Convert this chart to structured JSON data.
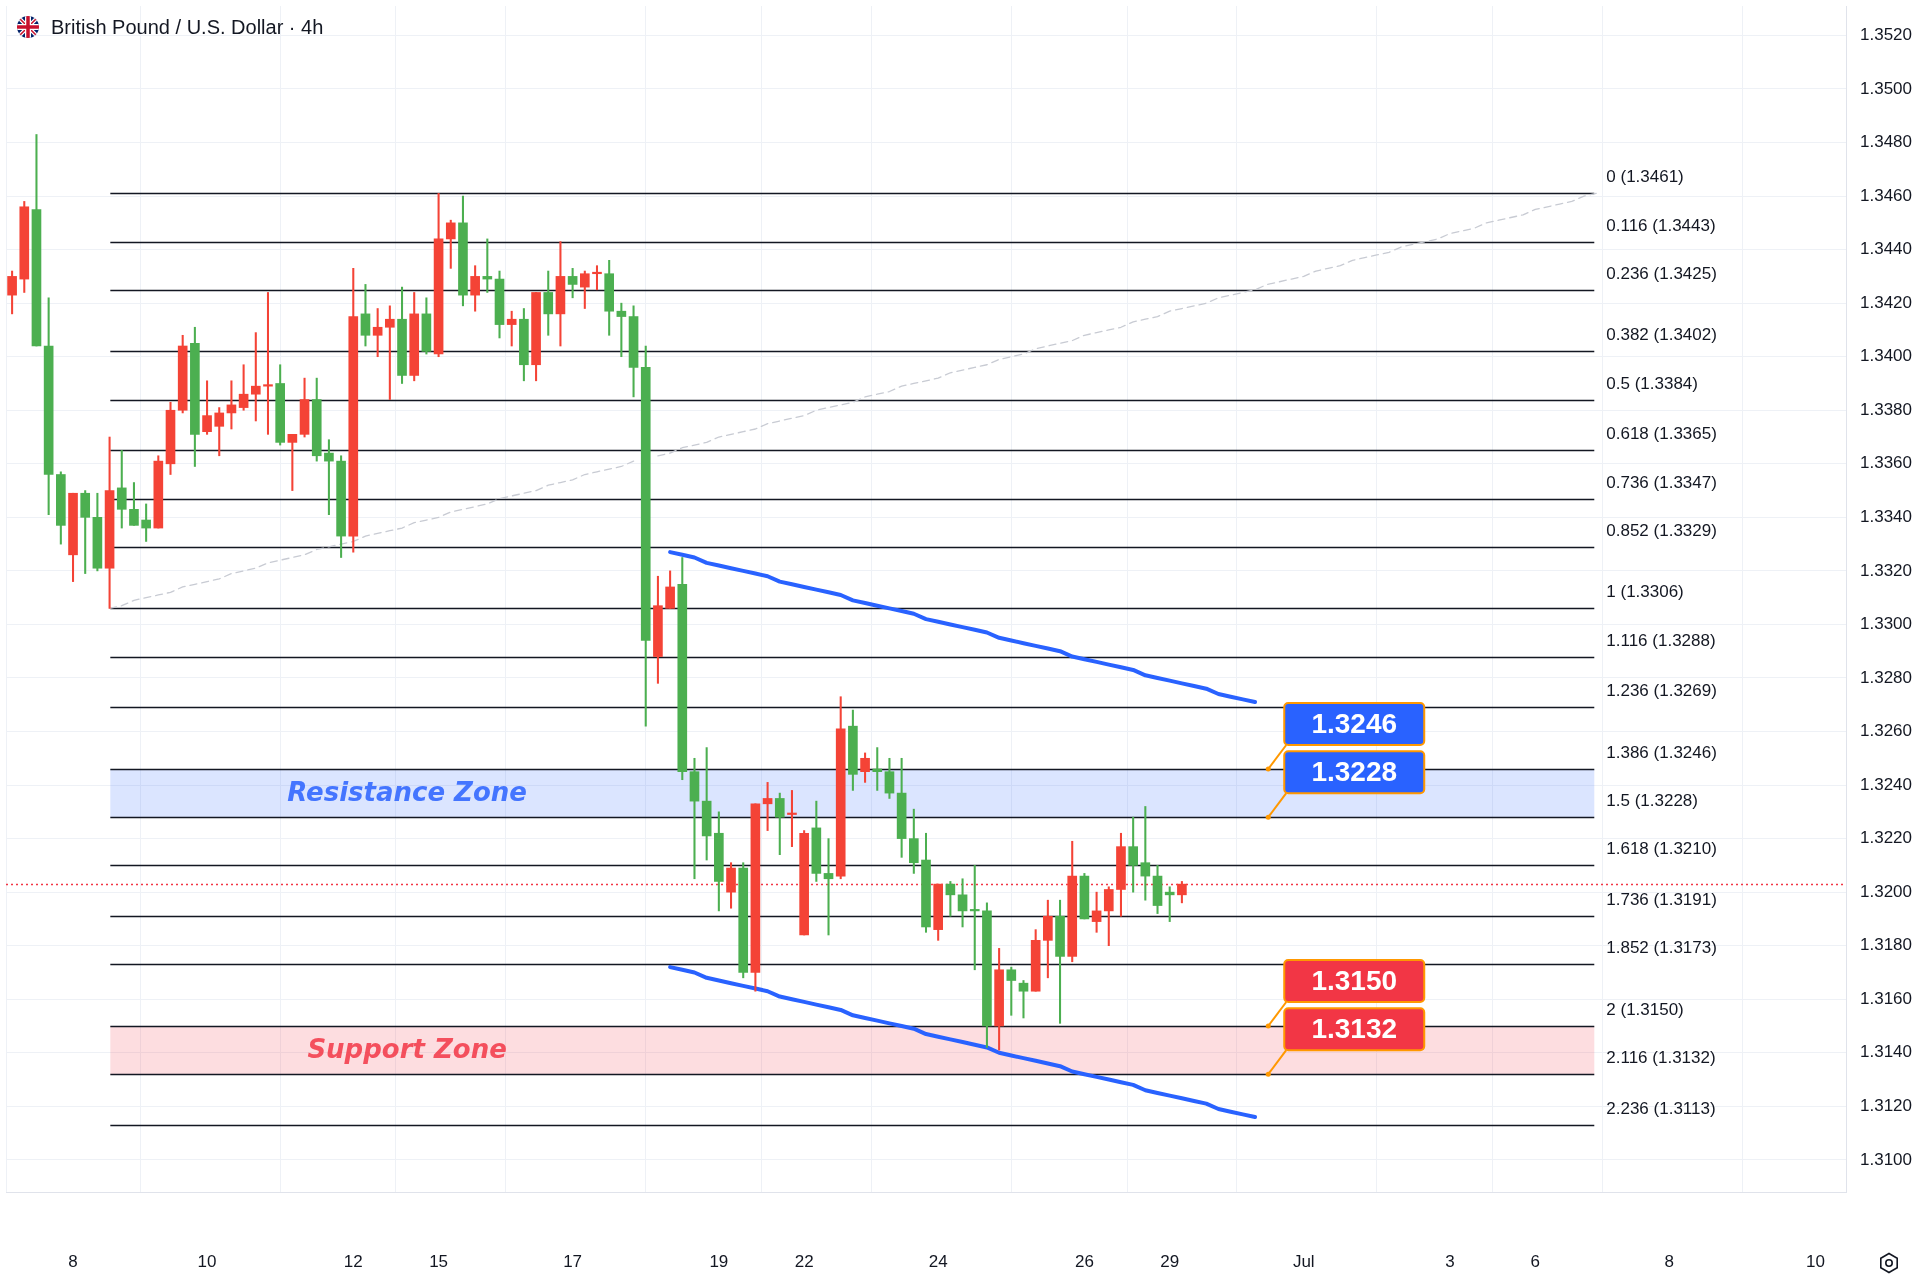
{
  "chart_data": {
    "type": "candlestick",
    "title": "British Pound / U.S. Dollar · 4h",
    "categories": [
      null,
      null,
      null,
      null,
      null,
      "8",
      null,
      null,
      null,
      null,
      null,
      null,
      null,
      null,
      null,
      null,
      "10",
      null,
      null,
      null,
      null,
      null,
      null,
      null,
      null,
      null,
      null,
      null,
      "12",
      null,
      null,
      null,
      null,
      null,
      null,
      "15",
      null,
      null,
      null,
      null,
      null,
      null,
      null,
      null,
      null,
      null,
      "17",
      null,
      null,
      null,
      null,
      null,
      null,
      null,
      null,
      null,
      null,
      null,
      "19",
      null,
      null,
      null,
      null,
      null,
      null,
      "22",
      null,
      null,
      null,
      null,
      null,
      null,
      null,
      null,
      null,
      null,
      "24",
      null,
      null,
      null,
      null,
      null,
      null,
      null,
      null,
      null,
      null,
      null,
      "26",
      null,
      null,
      null,
      null,
      null,
      null,
      "29",
      null,
      null,
      null,
      null,
      null,
      null,
      null,
      null,
      null,
      null,
      "Jul",
      null,
      null,
      null,
      null,
      null,
      null,
      null,
      null,
      null,
      null,
      null,
      "3",
      null,
      null,
      null,
      null,
      null,
      null,
      "6",
      null,
      null,
      null,
      null,
      null,
      null,
      null,
      null,
      null,
      null,
      "8",
      null,
      null,
      null,
      null,
      null,
      null,
      null,
      null,
      null,
      null,
      null,
      "10",
      null,
      null
    ],
    "ohlc": [
      [
        1.3423,
        1.3432,
        1.3416,
        1.343
      ],
      [
        1.3429,
        1.3458,
        1.3424,
        1.3456
      ],
      [
        1.3455,
        1.3483,
        1.3404,
        1.3404
      ],
      [
        1.3404,
        1.3422,
        1.3341,
        1.3356
      ],
      [
        1.3356,
        1.3357,
        1.333,
        1.3337
      ],
      [
        1.3326,
        1.3349,
        1.3316,
        1.3349
      ],
      [
        1.3349,
        1.335,
        1.3319,
        1.334
      ],
      [
        1.334,
        1.3349,
        1.332,
        1.3321
      ],
      [
        1.3321,
        1.337,
        1.3306,
        1.335
      ],
      [
        1.3351,
        1.3365,
        1.3336,
        1.3343
      ],
      [
        1.3343,
        1.3353,
        1.3337,
        1.3337
      ],
      [
        1.3339,
        1.3345,
        1.3331,
        1.3336
      ],
      [
        1.3336,
        1.3363,
        1.3336,
        1.3361
      ],
      [
        1.336,
        1.3383,
        1.3356,
        1.338
      ],
      [
        1.338,
        1.3408,
        1.3379,
        1.3404
      ],
      [
        1.3405,
        1.3411,
        1.3359,
        1.3371
      ],
      [
        1.3372,
        1.3391,
        1.3371,
        1.3378
      ],
      [
        1.3374,
        1.3381,
        1.3363,
        1.3379
      ],
      [
        1.3379,
        1.3391,
        1.3373,
        1.3382
      ],
      [
        1.3381,
        1.3397,
        1.338,
        1.3386
      ],
      [
        1.3386,
        1.3409,
        1.3376,
        1.3389
      ],
      [
        1.3389,
        1.3424,
        1.3371,
        1.3389
      ],
      [
        1.339,
        1.3397,
        1.3367,
        1.3368
      ],
      [
        1.3368,
        1.3371,
        1.335,
        1.3371
      ],
      [
        1.3371,
        1.3392,
        1.337,
        1.3384
      ],
      [
        1.3384,
        1.3392,
        1.3361,
        1.3363
      ],
      [
        1.3364,
        1.3369,
        1.3341,
        1.3361
      ],
      [
        1.3361,
        1.3363,
        1.3325,
        1.3333
      ],
      [
        1.3333,
        1.3433,
        1.3327,
        1.3415
      ],
      [
        1.3416,
        1.3427,
        1.3404,
        1.3408
      ],
      [
        1.3408,
        1.3418,
        1.34,
        1.3411
      ],
      [
        1.3411,
        1.3419,
        1.3384,
        1.3414
      ],
      [
        1.3414,
        1.3426,
        1.339,
        1.3393
      ],
      [
        1.3393,
        1.3424,
        1.3391,
        1.3416
      ],
      [
        1.3416,
        1.3422,
        1.3401,
        1.3402
      ],
      [
        1.3401,
        1.3461,
        1.34,
        1.3444
      ],
      [
        1.3444,
        1.3451,
        1.3433,
        1.345
      ],
      [
        1.345,
        1.346,
        1.3419,
        1.3423
      ],
      [
        1.3423,
        1.3434,
        1.3417,
        1.343
      ],
      [
        1.343,
        1.3444,
        1.3424,
        1.3429
      ],
      [
        1.3429,
        1.3432,
        1.3407,
        1.3412
      ],
      [
        1.3412,
        1.3417,
        1.3404,
        1.3414
      ],
      [
        1.3414,
        1.3418,
        1.3391,
        1.3397
      ],
      [
        1.3397,
        1.3424,
        1.3391,
        1.3424
      ],
      [
        1.3424,
        1.3432,
        1.3408,
        1.3416
      ],
      [
        1.3416,
        1.3443,
        1.3404,
        1.343
      ],
      [
        1.343,
        1.3433,
        1.3422,
        1.3427
      ],
      [
        1.3426,
        1.3432,
        1.3418,
        1.3431
      ],
      [
        1.3431,
        1.3434,
        1.3425,
        1.3431
      ],
      [
        1.3431,
        1.3436,
        1.3408,
        1.3417
      ],
      [
        1.3417,
        1.342,
        1.34,
        1.3415
      ],
      [
        1.3415,
        1.3419,
        1.3385,
        1.3396
      ],
      [
        1.3396,
        1.3404,
        1.3262,
        1.3294
      ],
      [
        1.3288,
        1.3318,
        1.3278,
        1.3307
      ],
      [
        1.3306,
        1.332,
        1.3306,
        1.3314
      ],
      [
        1.3315,
        1.3325,
        1.3242,
        1.3245
      ],
      [
        1.3245,
        1.325,
        1.3205,
        1.3234
      ],
      [
        1.3234,
        1.3254,
        1.3212,
        1.3221
      ],
      [
        1.3222,
        1.323,
        1.3193,
        1.3204
      ],
      [
        1.32,
        1.3211,
        1.3194,
        1.3209
      ],
      [
        1.3209,
        1.3211,
        1.3168,
        1.317
      ],
      [
        1.317,
        1.3233,
        1.3163,
        1.3233
      ],
      [
        1.3233,
        1.3241,
        1.3223,
        1.3235
      ],
      [
        1.3235,
        1.3237,
        1.3214,
        1.3228
      ],
      [
        1.3229,
        1.3238,
        1.3217,
        1.3229
      ],
      [
        1.3184,
        1.3223,
        1.3184,
        1.3222
      ],
      [
        1.3224,
        1.3234,
        1.3204,
        1.3207
      ],
      [
        1.3207,
        1.322,
        1.3184,
        1.3205
      ],
      [
        1.3206,
        1.3273,
        1.3205,
        1.3261
      ],
      [
        1.3262,
        1.3268,
        1.3238,
        1.3244
      ],
      [
        1.3245,
        1.3252,
        1.3241,
        1.325
      ],
      [
        1.3246,
        1.3254,
        1.3238,
        1.3245
      ],
      [
        1.3245,
        1.325,
        1.3235,
        1.3237
      ],
      [
        1.3237,
        1.325,
        1.3213,
        1.322
      ],
      [
        1.322,
        1.3231,
        1.3207,
        1.3211
      ],
      [
        1.3212,
        1.3222,
        1.3185,
        1.3187
      ],
      [
        1.3186,
        1.3203,
        1.3182,
        1.3203
      ],
      [
        1.3203,
        1.3204,
        1.3191,
        1.3199
      ],
      [
        1.3199,
        1.3205,
        1.3187,
        1.3193
      ],
      [
        1.3193,
        1.321,
        1.3171,
        1.3193
      ],
      [
        1.3193,
        1.3196,
        1.3142,
        1.315
      ],
      [
        1.315,
        1.3179,
        1.3141,
        1.3171
      ],
      [
        1.3171,
        1.3172,
        1.3154,
        1.3167
      ],
      [
        1.3166,
        1.3167,
        1.3153,
        1.3163
      ],
      [
        1.3163,
        1.3186,
        1.3163,
        1.3182
      ],
      [
        1.3182,
        1.3197,
        1.3168,
        1.3191
      ],
      [
        1.3191,
        1.3197,
        1.3151,
        1.3176
      ],
      [
        1.3176,
        1.3219,
        1.3174,
        1.3206
      ],
      [
        1.3206,
        1.3207,
        1.319,
        1.319
      ],
      [
        1.3189,
        1.32,
        1.3185,
        1.3193
      ],
      [
        1.3193,
        1.3202,
        1.318,
        1.3201
      ],
      [
        1.3201,
        1.3222,
        1.3191,
        1.3217
      ],
      [
        1.3217,
        1.3228,
        1.32,
        1.321
      ],
      [
        1.3211,
        1.3232,
        1.3197,
        1.3206
      ],
      [
        1.3206,
        1.321,
        1.3192,
        1.3195
      ],
      [
        1.32,
        1.3202,
        1.3189,
        1.3199
      ],
      [
        1.3199,
        1.3204,
        1.3196,
        1.3203
      ],
      null,
      null,
      null,
      null,
      null,
      null,
      null,
      null,
      null,
      null,
      null,
      null,
      null,
      null,
      null,
      null,
      null,
      null,
      null,
      null,
      null,
      null,
      null,
      null,
      null,
      null,
      null,
      null,
      null,
      null,
      null,
      null,
      null,
      null,
      null,
      null,
      null,
      null,
      null,
      null,
      null,
      null,
      null,
      null,
      null,
      null,
      null,
      null,
      null,
      null,
      null,
      null,
      null,
      null
    ],
    "colors": [
      "#f44336",
      "#f44336",
      "#4caf50",
      "#4caf50",
      "#4caf50",
      "#f44336",
      "#4caf50",
      "#4caf50",
      "#f44336",
      "#4caf50",
      "#4caf50",
      "#4caf50",
      "#f44336",
      "#f44336",
      "#f44336",
      "#4caf50",
      "#f44336",
      "#f44336",
      "#f44336",
      "#f44336",
      "#f44336",
      "#f44336",
      "#4caf50",
      "#f44336",
      "#f44336",
      "#4caf50",
      "#4caf50",
      "#4caf50",
      "#f44336",
      "#4caf50",
      "#f44336",
      "#f44336",
      "#4caf50",
      "#f44336",
      "#4caf50",
      "#f44336",
      "#f44336",
      "#4caf50",
      "#f44336",
      "#4caf50",
      "#4caf50",
      "#f44336",
      "#4caf50",
      "#f44336",
      "#4caf50",
      "#f44336",
      "#4caf50",
      "#f44336",
      "#f44336",
      "#4caf50",
      "#4caf50",
      "#4caf50",
      "#4caf50",
      "#f44336",
      "#f44336",
      "#4caf50",
      "#4caf50",
      "#4caf50",
      "#4caf50",
      "#f44336",
      "#4caf50",
      "#f44336",
      "#f44336",
      "#4caf50",
      "#f44336",
      "#f44336",
      "#4caf50",
      "#4caf50",
      "#f44336",
      "#4caf50",
      "#f44336",
      "#4caf50",
      "#4caf50",
      "#4caf50",
      "#4caf50",
      "#4caf50",
      "#f44336",
      "#4caf50",
      "#4caf50",
      "#4caf50",
      "#4caf50",
      "#f44336",
      "#4caf50",
      "#4caf50",
      "#f44336",
      "#f44336",
      "#4caf50",
      "#f44336",
      "#4caf50",
      "#f44336",
      "#f44336",
      "#f44336",
      "#4caf50",
      "#4caf50",
      "#4caf50",
      "#4caf50",
      "#f44336",
      null,
      null,
      null,
      null,
      null,
      null,
      null,
      null,
      null,
      null,
      null,
      null,
      null,
      null,
      null,
      null,
      null,
      null,
      null,
      null,
      null,
      null,
      null,
      null,
      null,
      null,
      null,
      null,
      null,
      null,
      null,
      null,
      null,
      null,
      null,
      null,
      null,
      null,
      null,
      null,
      null,
      null,
      null,
      null,
      null,
      null,
      null,
      null,
      null,
      null,
      null,
      null,
      null,
      null
    ],
    "series": [
      {
        "type": "line",
        "color": "#2962ff",
        "values": [
          null,
          null,
          null,
          null,
          null,
          null,
          null,
          null,
          null,
          null,
          null,
          null,
          null,
          null,
          null,
          null,
          null,
          null,
          null,
          null,
          null,
          null,
          null,
          null,
          null,
          null,
          null,
          null,
          null,
          null,
          null,
          null,
          null,
          null,
          null,
          null,
          null,
          null,
          null,
          null,
          null,
          null,
          null,
          null,
          null,
          null,
          null,
          null,
          null,
          null,
          null,
          null,
          null,
          null,
          1.3327,
          1.3326,
          1.3325,
          1.3323,
          1.3322,
          1.3321,
          1.332,
          1.3319,
          1.3318,
          1.3316,
          1.3315,
          1.3314,
          1.3313,
          1.3312,
          1.3311,
          1.3309,
          1.3308,
          1.3307,
          1.3306,
          1.3305,
          1.3304,
          1.3302,
          1.3301,
          1.33,
          1.3299,
          1.3298,
          1.3297,
          1.3295,
          1.3294,
          1.3293,
          1.3292,
          1.3291,
          1.329,
          1.3288,
          1.3287,
          1.3286,
          1.3285,
          1.3284,
          1.3283,
          1.3281,
          1.328,
          1.3279,
          1.3278,
          1.3277,
          1.3276,
          1.3274,
          1.3273,
          1.3272,
          1.3271,
          null,
          null,
          null,
          null,
          null,
          null,
          null,
          null,
          null,
          null,
          null,
          null,
          null,
          null,
          null,
          null,
          null,
          null,
          null,
          null,
          null,
          null,
          null,
          null,
          null,
          null,
          null,
          null,
          null,
          null,
          null,
          null,
          null,
          null,
          null,
          null,
          null,
          null,
          null,
          null,
          null,
          null,
          null,
          null,
          null,
          null,
          null,
          null
        ]
      },
      {
        "type": "line",
        "color": "#2962ff",
        "values": [
          null,
          null,
          null,
          null,
          null,
          null,
          null,
          null,
          null,
          null,
          null,
          null,
          null,
          null,
          null,
          null,
          null,
          null,
          null,
          null,
          null,
          null,
          null,
          null,
          null,
          null,
          null,
          null,
          null,
          null,
          null,
          null,
          null,
          null,
          null,
          null,
          null,
          null,
          null,
          null,
          null,
          null,
          null,
          null,
          null,
          null,
          null,
          null,
          null,
          null,
          null,
          null,
          null,
          null,
          1.3172,
          1.3171,
          1.317,
          1.3168,
          1.3167,
          1.3166,
          1.3165,
          1.3164,
          1.3163,
          1.3161,
          1.316,
          1.3159,
          1.3158,
          1.3157,
          1.3156,
          1.3154,
          1.3153,
          1.3152,
          1.3151,
          1.315,
          1.3149,
          1.3147,
          1.3146,
          1.3145,
          1.3144,
          1.3143,
          1.3142,
          1.314,
          1.3139,
          1.3138,
          1.3137,
          1.3136,
          1.3135,
          1.3133,
          1.3132,
          1.3131,
          1.313,
          1.3129,
          1.3128,
          1.3126,
          1.3125,
          1.3124,
          1.3123,
          1.3122,
          1.3121,
          1.3119,
          1.3118,
          1.3117,
          1.3116,
          null,
          null,
          null,
          null,
          null,
          null,
          null,
          null,
          null,
          null,
          null,
          null,
          null,
          null,
          null,
          null,
          null,
          null,
          null,
          null,
          null,
          null,
          null,
          null,
          null,
          null,
          null,
          null,
          null,
          null,
          null,
          null,
          null,
          null,
          null,
          null,
          null,
          null,
          null,
          null,
          null,
          null,
          null,
          null,
          null,
          null,
          null,
          null
        ]
      },
      {
        "type": "line",
        "color": "#c8cbd3",
        "line_style": "dashed",
        "values": [
          null,
          null,
          null,
          null,
          null,
          null,
          null,
          null,
          1.3306,
          1.3307,
          1.3309,
          1.331,
          1.3311,
          1.3312,
          1.3314,
          1.3315,
          1.3316,
          1.3317,
          1.3319,
          1.332,
          1.3321,
          1.3323,
          1.3324,
          1.3325,
          1.3326,
          1.3328,
          1.3329,
          1.333,
          1.3331,
          1.3333,
          1.3334,
          1.3335,
          1.3336,
          1.3338,
          1.3339,
          1.334,
          1.3342,
          1.3343,
          1.3344,
          1.3345,
          1.3347,
          1.3348,
          1.3349,
          1.335,
          1.3352,
          1.3353,
          1.3354,
          1.3356,
          1.3357,
          1.3358,
          1.3359,
          1.3361,
          null,
          1.3363,
          1.3364,
          1.3366,
          1.3367,
          1.3368,
          1.337,
          1.3371,
          1.3372,
          1.3373,
          1.3375,
          1.3376,
          1.3377,
          1.3378,
          1.338,
          1.3381,
          1.3382,
          1.3383,
          1.3385,
          1.3386,
          1.3387,
          1.3389,
          1.339,
          1.3391,
          1.3392,
          1.3394,
          1.3395,
          1.3396,
          1.3397,
          1.3399,
          1.34,
          1.3401,
          1.3403,
          1.3404,
          1.3405,
          1.3406,
          1.3408,
          1.3409,
          1.341,
          1.3411,
          1.3413,
          1.3414,
          1.3415,
          1.3417,
          1.3418,
          1.3419,
          1.342,
          1.3422,
          1.3423,
          1.3424,
          1.3425,
          1.3427,
          1.3428,
          1.3429,
          1.343,
          1.3432,
          1.3433,
          1.3434,
          1.3436,
          1.3437,
          1.3438,
          1.3439,
          1.3441,
          1.3442,
          1.3443,
          1.3444,
          1.3446,
          1.3447,
          1.3448,
          1.345,
          1.3451,
          1.3452,
          1.3453,
          1.3455,
          1.3456,
          1.3457,
          1.3458,
          1.346,
          1.3461,
          null,
          null,
          null,
          null,
          null,
          null,
          null,
          null,
          null,
          null,
          null,
          null,
          null,
          null,
          null,
          null,
          null,
          null,
          null,
          null
        ]
      }
    ],
    "ylim": [
      1.3088,
      1.3531
    ],
    "yticks": [
      {
        "value": 1.31,
        "label": "1.3100"
      },
      {
        "value": 1.312,
        "label": "1.3120"
      },
      {
        "value": 1.314,
        "label": "1.3140"
      },
      {
        "value": 1.316,
        "label": "1.3160"
      },
      {
        "value": 1.318,
        "label": "1.3180"
      },
      {
        "value": 1.32,
        "label": "1.3200"
      },
      {
        "value": 1.322,
        "label": "1.3220"
      },
      {
        "value": 1.324,
        "label": "1.3240"
      },
      {
        "value": 1.326,
        "label": "1.3260"
      },
      {
        "value": 1.328,
        "label": "1.3280"
      },
      {
        "value": 1.33,
        "label": "1.3300"
      },
      {
        "value": 1.332,
        "label": "1.3320"
      },
      {
        "value": 1.334,
        "label": "1.3340"
      },
      {
        "value": 1.336,
        "label": "1.3360"
      },
      {
        "value": 1.338,
        "label": "1.3380"
      },
      {
        "value": 1.34,
        "label": "1.3400"
      },
      {
        "value": 1.342,
        "label": "1.3420"
      },
      {
        "value": 1.344,
        "label": "1.3440"
      },
      {
        "value": 1.346,
        "label": "1.3460"
      },
      {
        "value": 1.348,
        "label": "1.3480"
      },
      {
        "value": 1.35,
        "label": "1.3500"
      },
      {
        "value": 1.352,
        "label": "1.3520"
      }
    ],
    "grid": true,
    "bands": [
      {
        "axis": "y",
        "from": 1.3228,
        "to": 1.3246,
        "label": "Resistance Zone",
        "color": "#2962ff"
      },
      {
        "axis": "y",
        "from": 1.3132,
        "to": 1.315,
        "label": "Support Zone",
        "color": "#f23645"
      }
    ],
    "ref_lines": [
      {
        "axis": "y",
        "value": 1.3461,
        "label": "0 (1.3461)",
        "color": "#131722"
      },
      {
        "axis": "y",
        "value": 1.3443,
        "label": "0.116 (1.3443)",
        "color": "#131722"
      },
      {
        "axis": "y",
        "value": 1.3425,
        "label": "0.236 (1.3425)",
        "color": "#131722"
      },
      {
        "axis": "y",
        "value": 1.3402,
        "label": "0.382 (1.3402)",
        "color": "#131722"
      },
      {
        "axis": "y",
        "value": 1.3384,
        "label": "0.5 (1.3384)",
        "color": "#131722"
      },
      {
        "axis": "y",
        "value": 1.3365,
        "label": "0.618 (1.3365)",
        "color": "#131722"
      },
      {
        "axis": "y",
        "value": 1.3347,
        "label": "0.736 (1.3347)",
        "color": "#131722"
      },
      {
        "axis": "y",
        "value": 1.3329,
        "label": "0.852 (1.3329)",
        "color": "#131722"
      },
      {
        "axis": "y",
        "value": 1.3306,
        "label": "1 (1.3306)",
        "color": "#131722"
      },
      {
        "axis": "y",
        "value": 1.3288,
        "label": "1.116 (1.3288)",
        "color": "#131722"
      },
      {
        "axis": "y",
        "value": 1.3269,
        "label": "1.236 (1.3269)",
        "color": "#131722"
      },
      {
        "axis": "y",
        "value": 1.3246,
        "label": "1.386 (1.3246)",
        "color": "#131722"
      },
      {
        "axis": "y",
        "value": 1.3228,
        "label": "1.5 (1.3228)",
        "color": "#131722"
      },
      {
        "axis": "y",
        "value": 1.321,
        "label": "1.618 (1.3210)",
        "color": "#131722"
      },
      {
        "axis": "y",
        "value": 1.3191,
        "label": "1.736 (1.3191)",
        "color": "#131722"
      },
      {
        "axis": "y",
        "value": 1.3173,
        "label": "1.852 (1.3173)",
        "color": "#131722"
      },
      {
        "axis": "y",
        "value": 1.315,
        "label": "2 (1.3150)",
        "color": "#131722"
      },
      {
        "axis": "y",
        "value": 1.3132,
        "label": "2.116 (1.3132)",
        "color": "#131722"
      },
      {
        "axis": "y",
        "value": 1.3113,
        "label": "2.236 (1.3113)",
        "color": "#131722"
      },
      {
        "axis": "y",
        "value": 1.3203,
        "color": "#f23645",
        "line_style": "dotted"
      }
    ],
    "annotations": [
      {
        "text": "1.3246",
        "y": 1.3246
      },
      {
        "text": "1.3228",
        "y": 1.3228
      },
      {
        "text": "1.3150",
        "y": 1.315
      },
      {
        "text": "1.3132",
        "y": 1.3132
      }
    ]
  }
}
